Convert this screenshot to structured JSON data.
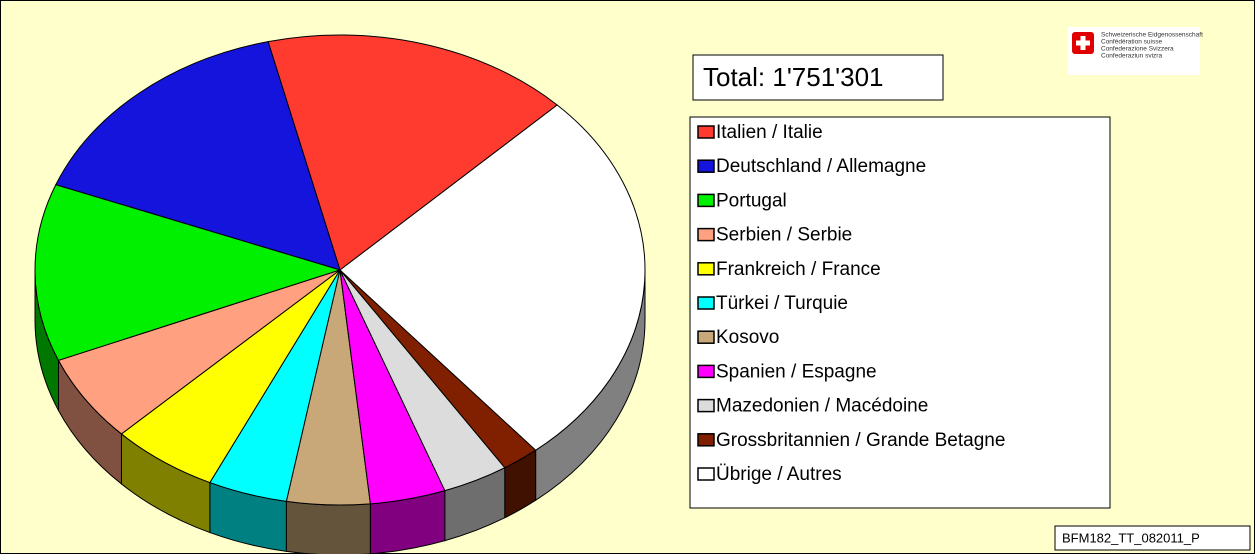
{
  "chart_data": {
    "type": "pie",
    "total_label": "Total: 1'751'301",
    "categories": [
      "Italien / Italie",
      "Deutschland / Allemagne",
      "Portugal",
      "Serbien / Serbie",
      "Frankreich / France",
      "Türkei / Turquie",
      "Kosovo",
      "Spanien / Espagne",
      "Mazedonien / Macédoine",
      "Grossbritannien / Grande Betagne",
      "Übrige / Autres"
    ],
    "values": [
      16.4,
      15.3,
      12.2,
      6.0,
      5.7,
      4.2,
      4.4,
      4.0,
      3.5,
      2.0,
      26.3
    ],
    "colors": [
      "#ff3b2f",
      "#1414dc",
      "#00f000",
      "#ffa080",
      "#ffff00",
      "#00ffff",
      "#c8a878",
      "#ff00ff",
      "#dcdcdc",
      "#802000",
      "#ffffff"
    ],
    "legend": "right"
  },
  "logo": {
    "lines": [
      "Schweizerische Eidgenossenschaft",
      "Confédération suisse",
      "Confederazione Svizzera",
      "Confederaziun svizra"
    ]
  },
  "footnote": "BFM182_TT_082011_P"
}
